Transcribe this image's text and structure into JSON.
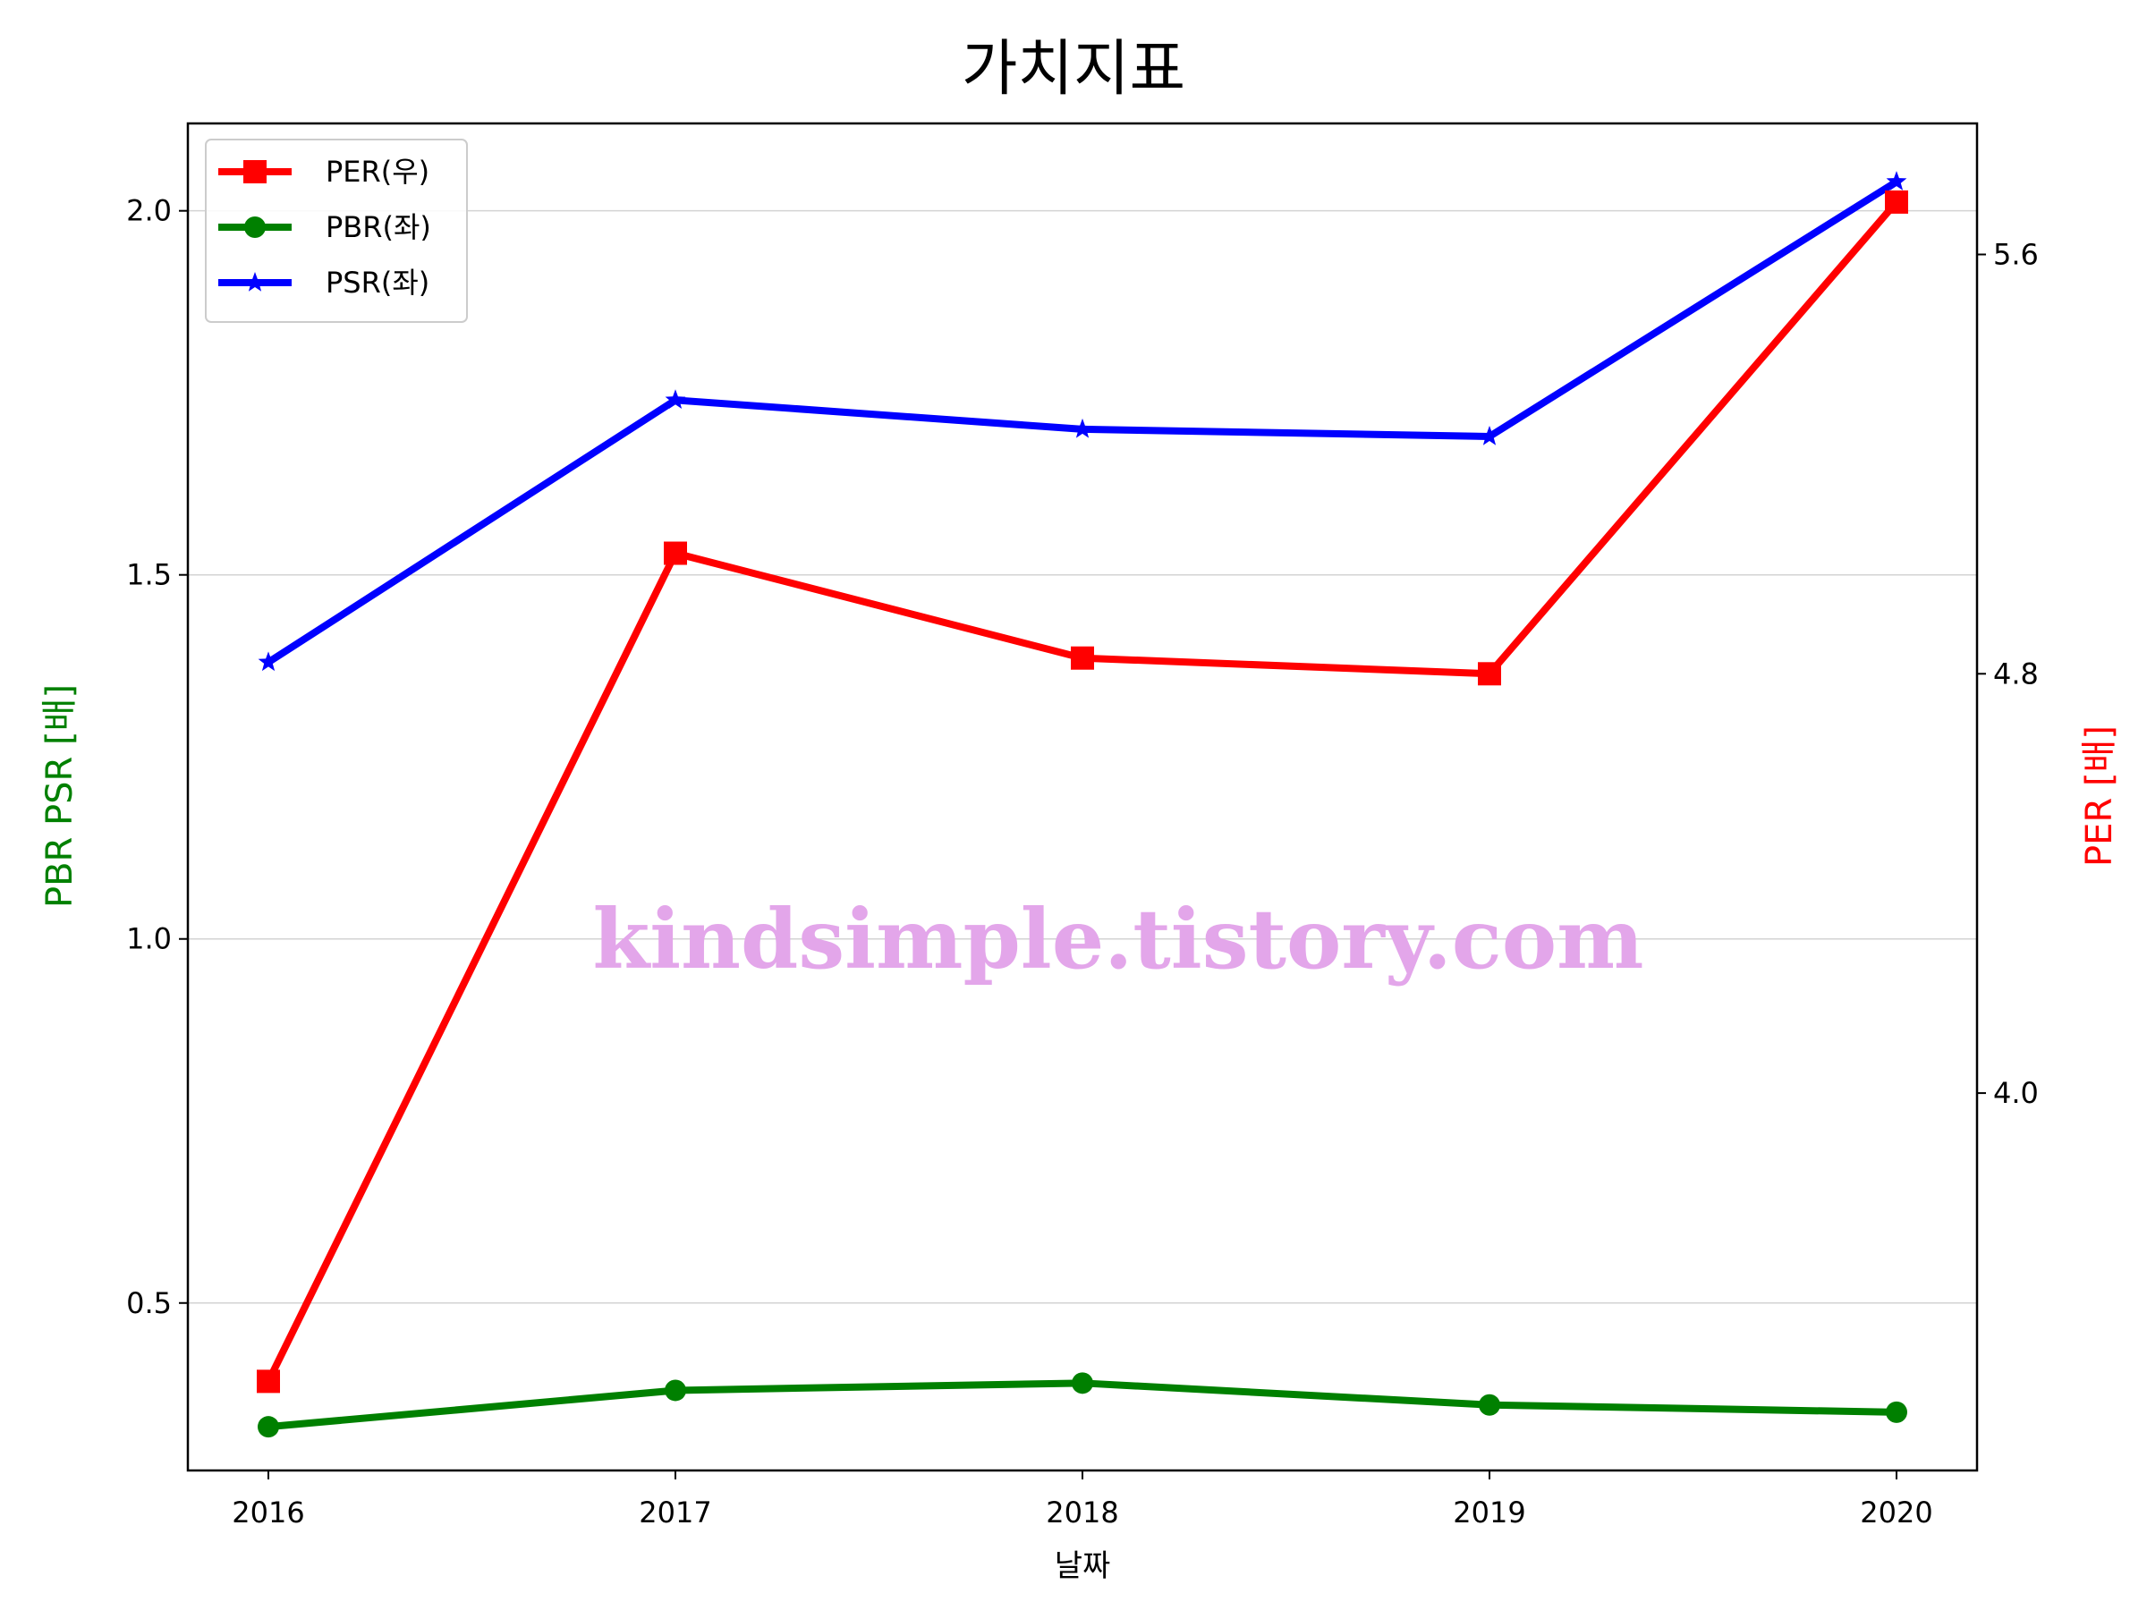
{
  "chart_data": {
    "type": "line",
    "title": "가치지표",
    "xlabel": "날짜",
    "ylabel_left": "PBR PSR [배]",
    "ylabel_right": "PER [배]",
    "categories": [
      "2016",
      "2017",
      "2018",
      "2019",
      "2020"
    ],
    "left_axis": {
      "ylim": [
        0.27,
        2.12
      ],
      "ticks": [
        "0.5",
        "1.0",
        "1.5",
        "2.0"
      ],
      "color": "#008000"
    },
    "right_axis": {
      "ylim": [
        3.28,
        5.85
      ],
      "ticks": [
        "4.0",
        "4.8",
        "5.6"
      ],
      "color": "#ff0000"
    },
    "grid": "horizontal-left",
    "legend_position": "top-left",
    "series": [
      {
        "name": "PER(우)",
        "axis": "right",
        "color": "#ff0000",
        "marker": "square",
        "values": [
          3.45,
          5.03,
          4.83,
          4.8,
          5.7
        ]
      },
      {
        "name": "PBR(좌)",
        "axis": "left",
        "color": "#008000",
        "marker": "circle",
        "values": [
          0.33,
          0.38,
          0.39,
          0.36,
          0.35
        ]
      },
      {
        "name": "PSR(좌)",
        "axis": "left",
        "color": "#0000ff",
        "marker": "star",
        "values": [
          1.38,
          1.74,
          1.7,
          1.69,
          2.04
        ]
      }
    ],
    "watermark": "kindsimple.tistory.com"
  }
}
